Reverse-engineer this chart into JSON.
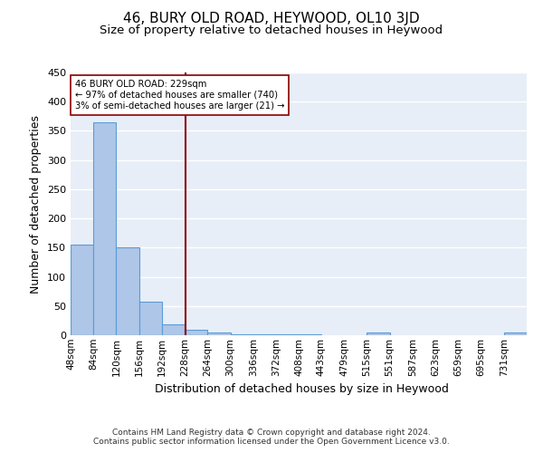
{
  "title": "46, BURY OLD ROAD, HEYWOOD, OL10 3JD",
  "subtitle": "Size of property relative to detached houses in Heywood",
  "xlabel": "Distribution of detached houses by size in Heywood",
  "ylabel": "Number of detached properties",
  "bin_edges": [
    48,
    84,
    120,
    156,
    192,
    228,
    264,
    300,
    336,
    372,
    408,
    443,
    479,
    515,
    551,
    587,
    623,
    659,
    695,
    731,
    767
  ],
  "bar_heights": [
    155,
    365,
    150,
    57,
    18,
    10,
    5,
    2,
    2,
    2,
    1,
    0,
    0,
    5,
    0,
    0,
    0,
    0,
    0,
    5
  ],
  "bar_color": "#aec6e8",
  "bar_edge_color": "#5b9bd5",
  "background_color": "#e8eef7",
  "grid_color": "#ffffff",
  "red_line_x": 229,
  "annotation_lines": [
    "46 BURY OLD ROAD: 229sqm",
    "← 97% of detached houses are smaller (740)",
    "3% of semi-detached houses are larger (21) →"
  ],
  "ylim": [
    0,
    450
  ],
  "yticks": [
    0,
    50,
    100,
    150,
    200,
    250,
    300,
    350,
    400,
    450
  ],
  "footer_line1": "Contains HM Land Registry data © Crown copyright and database right 2024.",
  "footer_line2": "Contains public sector information licensed under the Open Government Licence v3.0.",
  "title_fontsize": 11,
  "subtitle_fontsize": 9.5,
  "xlabel_fontsize": 9,
  "ylabel_fontsize": 9
}
